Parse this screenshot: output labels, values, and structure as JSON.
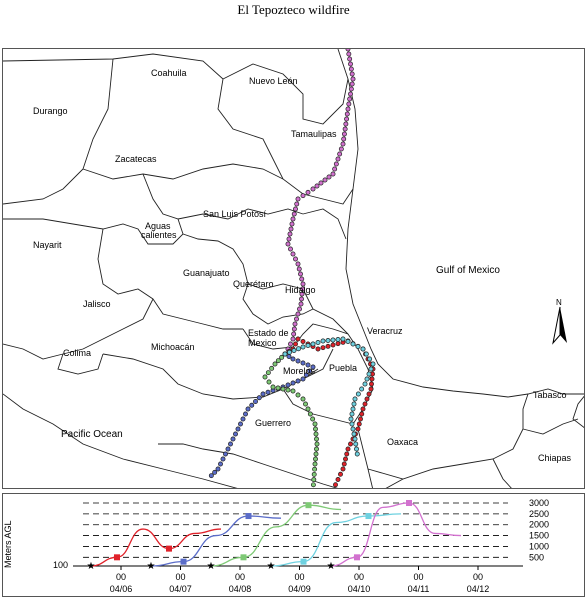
{
  "title": "El Tepozteco wildfire",
  "map": {
    "labels": {
      "coahuila": "Coahuila",
      "nuevo_leon": "Nuevo León",
      "durango": "Durango",
      "tamaulipas": "Tamaulipas",
      "zacatecas": "Zacatecas",
      "san_luis_potosi": "San Luis Potosí",
      "aguas_1": "Aguas",
      "aguas_2": "calientes",
      "nayarit": "Nayarit",
      "guanajuato": "Guanajuato",
      "queretaro": "Querétaro",
      "hidalgo": "Hidalgo",
      "gulf": "Gulf of Mexico",
      "jalisco": "Jalisco",
      "estado_1": "Estado de",
      "estado_2": "Mexico",
      "veracruz": "Veracruz",
      "colima": "Colima",
      "michoacan": "Michoacán",
      "morelos": "Morelos",
      "puebla": "Puebla",
      "guerrero": "Guerrero",
      "pacific": "Pacific Ocean",
      "oaxaca": "Oaxaca",
      "tabasco": "Tabasco",
      "chiapas": "Chiapas",
      "north": "N"
    },
    "colors": {
      "magenta": "#d271cf",
      "red": "#e0222a",
      "blue": "#5a6cc8",
      "green": "#7ec975",
      "cyan": "#6ed1e0"
    }
  },
  "chart_data": {
    "type": "line",
    "ylabel": "Meters AGL",
    "base_label": "100",
    "right_ticks": [
      "3000",
      "2500",
      "2000",
      "1500",
      "1000",
      "500"
    ],
    "x_ticks": [
      {
        "top": "00",
        "bottom": "04/06"
      },
      {
        "top": "00",
        "bottom": "04/07"
      },
      {
        "top": "00",
        "bottom": "04/08"
      },
      {
        "top": "00",
        "bottom": "04/09"
      },
      {
        "top": "00",
        "bottom": "04/10"
      },
      {
        "top": "00",
        "bottom": "04/11"
      },
      {
        "top": "00",
        "bottom": "04/12"
      }
    ],
    "series": [
      {
        "color": "#e0222a",
        "values": [
          100,
          500,
          1800,
          900,
          1600,
          1800
        ]
      },
      {
        "color": "#5a6cc8",
        "values": [
          100,
          300,
          1500,
          2400,
          2300
        ]
      },
      {
        "color": "#7ec975",
        "values": [
          100,
          500,
          1900,
          2900,
          2700
        ]
      },
      {
        "color": "#6ed1e0",
        "values": [
          100,
          300,
          2100,
          2400,
          2500
        ]
      },
      {
        "color": "#d271cf",
        "values": [
          100,
          500,
          2800,
          3000,
          1600,
          1500
        ]
      }
    ]
  }
}
